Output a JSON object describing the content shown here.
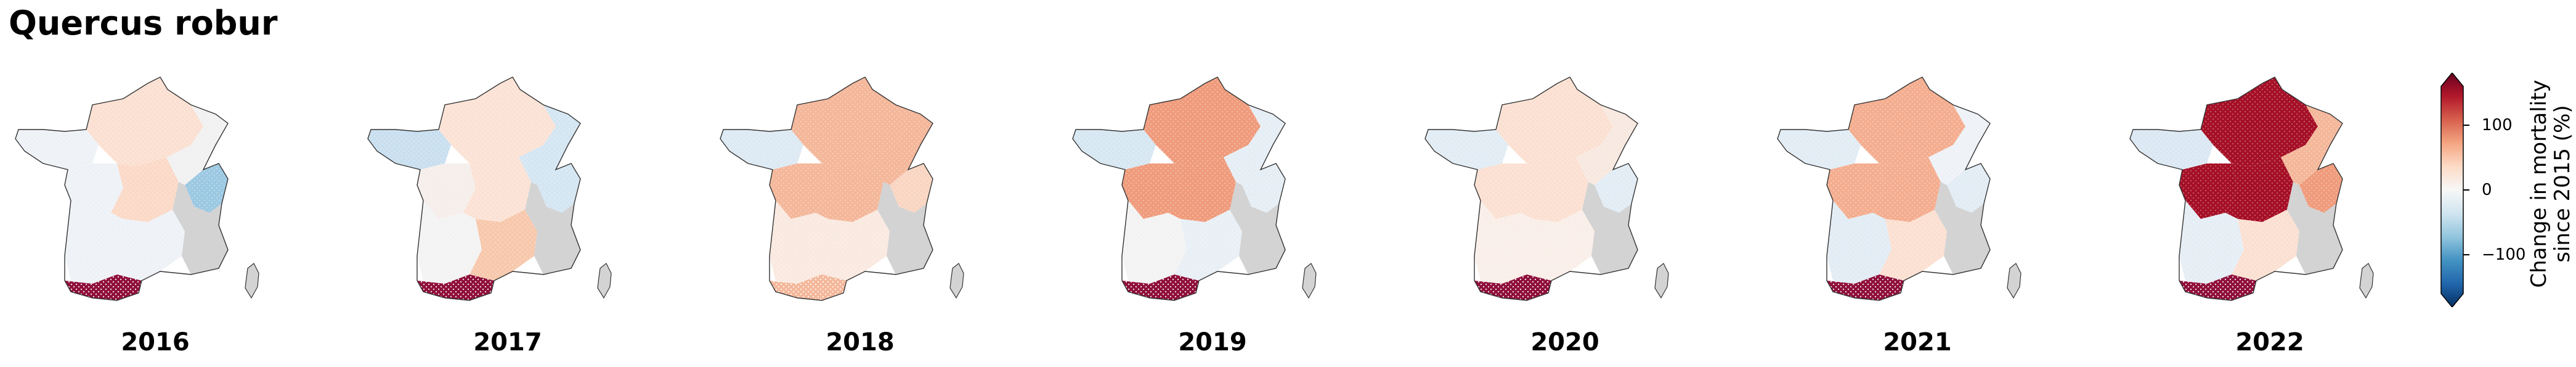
{
  "title": "Quercus robur",
  "colorbar": {
    "label_line1": "Change in mortality",
    "label_line2": "since 2015 (%)",
    "ticks": [
      "100",
      "0",
      "−100"
    ],
    "range": [
      -160,
      160
    ],
    "colors": [
      "#053061",
      "#2166ac",
      "#4393c3",
      "#92c5de",
      "#d1e5f0",
      "#f7f7f7",
      "#fddbc7",
      "#f4a582",
      "#d6604d",
      "#b2182b",
      "#67001f"
    ]
  },
  "no_data_color": "#d3d3d3",
  "panels": [
    {
      "year": "2016",
      "regions": {
        "north": "#fbe0d2",
        "brittany": "#eef2f7",
        "west": "#eef2f7",
        "center": "#fbd9c7",
        "northeast": "#f1f1f1",
        "alps_n": "#9cc8e2",
        "southwest": "#eef2f7",
        "south": "#eef2f7",
        "pyrenees": "#8f0f3a"
      }
    },
    {
      "year": "2017",
      "regions": {
        "north": "#fbe2d5",
        "brittany": "#c9dff0",
        "west": "#f5eeea",
        "center": "#fbe2d5",
        "northeast": "#d4e6f2",
        "alps_n": "#d4e6f2",
        "southwest": "#f3f3f3",
        "south": "#f7c8ac",
        "pyrenees": "#8f0f3a"
      }
    },
    {
      "year": "2018",
      "regions": {
        "north": "#f4b79a",
        "brittany": "#dde9f3",
        "west": "#f4b79a",
        "center": "#f4b79a",
        "northeast": "#f4b79a",
        "alps_n": "#f9d5c2",
        "southwest": "#f9e9e0",
        "south": "#f9e9e0",
        "pyrenees": "#f4b79a"
      }
    },
    {
      "year": "2019",
      "regions": {
        "north": "#ef9b7c",
        "brittany": "#d7e7f2",
        "west": "#ef9b7c",
        "center": "#ef9b7c",
        "northeast": "#e6eef5",
        "alps_n": "#e6eef5",
        "southwest": "#f3f3f3",
        "south": "#e8eff5",
        "pyrenees": "#8f0f3a"
      }
    },
    {
      "year": "2020",
      "regions": {
        "north": "#fbe0d2",
        "brittany": "#e2ecf4",
        "west": "#fbe0d2",
        "center": "#fbe0d2",
        "northeast": "#f7e8e0",
        "alps_n": "#e2ecf4",
        "southwest": "#f9eee8",
        "south": "#f9eee8",
        "pyrenees": "#8f0f3a"
      }
    },
    {
      "year": "2021",
      "regions": {
        "north": "#f4ad8f",
        "brittany": "#e2ecf4",
        "west": "#f4ad8f",
        "center": "#f4ad8f",
        "northeast": "#eef2f7",
        "alps_n": "#e2ecf4",
        "southwest": "#e2ecf4",
        "south": "#fbe0d2",
        "pyrenees": "#8f0f3a"
      }
    },
    {
      "year": "2022",
      "regions": {
        "north": "#a50f26",
        "brittany": "#dbe8f3",
        "west": "#a50f26",
        "center": "#a50f26",
        "northeast": "#f4b79a",
        "alps_n": "#ef9b7c",
        "southwest": "#e6eef5",
        "south": "#fbe0d2",
        "pyrenees": "#8f0f3a"
      }
    }
  ]
}
